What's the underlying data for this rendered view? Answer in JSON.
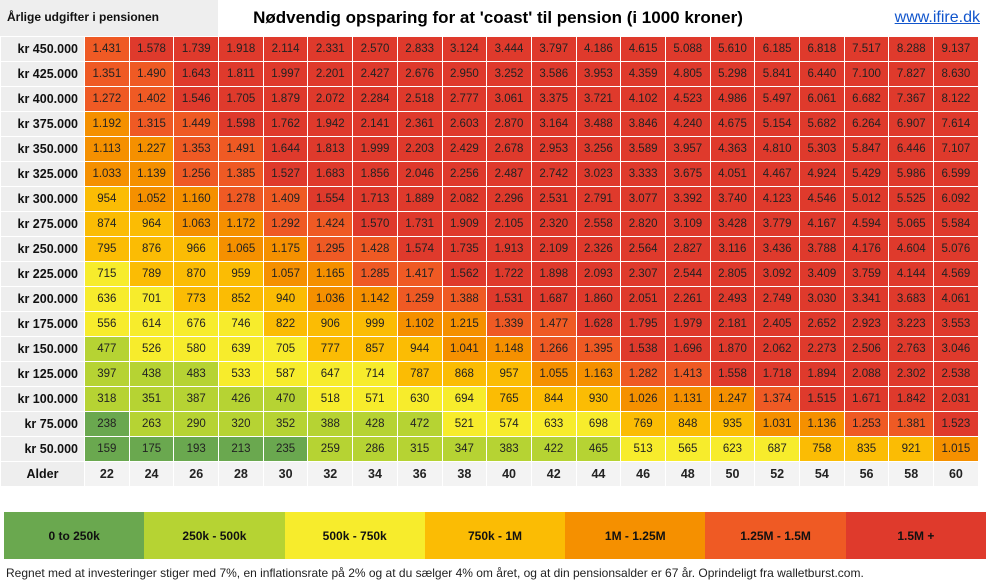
{
  "header": {
    "row_label": "Årlige udgifter i pensionen",
    "title": "Nødvendig opsparing for at 'coast' til pension (i 1000 kroner)",
    "link": "www.ifire.dk"
  },
  "age_label": "Alder",
  "ages": [
    "22",
    "24",
    "26",
    "28",
    "30",
    "32",
    "34",
    "36",
    "38",
    "40",
    "42",
    "44",
    "46",
    "48",
    "50",
    "52",
    "54",
    "56",
    "58",
    "60"
  ],
  "rows": [
    {
      "label": "kr 450.000",
      "values": [
        "1.431",
        "1.578",
        "1.739",
        "1.918",
        "2.114",
        "2.331",
        "2.570",
        "2.833",
        "3.124",
        "3.444",
        "3.797",
        "4.186",
        "4.615",
        "5.088",
        "5.610",
        "6.185",
        "6.818",
        "7.517",
        "8.288",
        "9.137"
      ]
    },
    {
      "label": "kr 425.000",
      "values": [
        "1.351",
        "1.490",
        "1.643",
        "1.811",
        "1.997",
        "2.201",
        "2.427",
        "2.676",
        "2.950",
        "3.252",
        "3.586",
        "3.953",
        "4.359",
        "4.805",
        "5.298",
        "5.841",
        "6.440",
        "7.100",
        "7.827",
        "8.630"
      ]
    },
    {
      "label": "kr 400.000",
      "values": [
        "1.272",
        "1.402",
        "1.546",
        "1.705",
        "1.879",
        "2.072",
        "2.284",
        "2.518",
        "2.777",
        "3.061",
        "3.375",
        "3.721",
        "4.102",
        "4.523",
        "4.986",
        "5.497",
        "6.061",
        "6.682",
        "7.367",
        "8.122"
      ]
    },
    {
      "label": "kr 375.000",
      "values": [
        "1.192",
        "1.315",
        "1.449",
        "1.598",
        "1.762",
        "1.942",
        "2.141",
        "2.361",
        "2.603",
        "2.870",
        "3.164",
        "3.488",
        "3.846",
        "4.240",
        "4.675",
        "5.154",
        "5.682",
        "6.264",
        "6.907",
        "7.614"
      ]
    },
    {
      "label": "kr 350.000",
      "values": [
        "1.113",
        "1.227",
        "1.353",
        "1.491",
        "1.644",
        "1.813",
        "1.999",
        "2.203",
        "2.429",
        "2.678",
        "2.953",
        "3.256",
        "3.589",
        "3.957",
        "4.363",
        "4.810",
        "5.303",
        "5.847",
        "6.446",
        "7.107"
      ]
    },
    {
      "label": "kr 325.000",
      "values": [
        "1.033",
        "1.139",
        "1.256",
        "1.385",
        "1.527",
        "1.683",
        "1.856",
        "2.046",
        "2.256",
        "2.487",
        "2.742",
        "3.023",
        "3.333",
        "3.675",
        "4.051",
        "4.467",
        "4.924",
        "5.429",
        "5.986",
        "6.599"
      ]
    },
    {
      "label": "kr 300.000",
      "values": [
        "954",
        "1.052",
        "1.160",
        "1.278",
        "1.409",
        "1.554",
        "1.713",
        "1.889",
        "2.082",
        "2.296",
        "2.531",
        "2.791",
        "3.077",
        "3.392",
        "3.740",
        "4.123",
        "4.546",
        "5.012",
        "5.525",
        "6.092"
      ]
    },
    {
      "label": "kr 275.000",
      "values": [
        "874",
        "964",
        "1.063",
        "1.172",
        "1.292",
        "1.424",
        "1.570",
        "1.731",
        "1.909",
        "2.105",
        "2.320",
        "2.558",
        "2.820",
        "3.109",
        "3.428",
        "3.779",
        "4.167",
        "4.594",
        "5.065",
        "5.584"
      ]
    },
    {
      "label": "kr 250.000",
      "values": [
        "795",
        "876",
        "966",
        "1.065",
        "1.175",
        "1.295",
        "1.428",
        "1.574",
        "1.735",
        "1.913",
        "2.109",
        "2.326",
        "2.564",
        "2.827",
        "3.116",
        "3.436",
        "3.788",
        "4.176",
        "4.604",
        "5.076"
      ]
    },
    {
      "label": "kr 225.000",
      "values": [
        "715",
        "789",
        "870",
        "959",
        "1.057",
        "1.165",
        "1.285",
        "1.417",
        "1.562",
        "1.722",
        "1.898",
        "2.093",
        "2.307",
        "2.544",
        "2.805",
        "3.092",
        "3.409",
        "3.759",
        "4.144",
        "4.569"
      ]
    },
    {
      "label": "kr 200.000",
      "values": [
        "636",
        "701",
        "773",
        "852",
        "940",
        "1.036",
        "1.142",
        "1.259",
        "1.388",
        "1.531",
        "1.687",
        "1.860",
        "2.051",
        "2.261",
        "2.493",
        "2.749",
        "3.030",
        "3.341",
        "3.683",
        "4.061"
      ]
    },
    {
      "label": "kr 175.000",
      "values": [
        "556",
        "614",
        "676",
        "746",
        "822",
        "906",
        "999",
        "1.102",
        "1.215",
        "1.339",
        "1.477",
        "1.628",
        "1.795",
        "1.979",
        "2.181",
        "2.405",
        "2.652",
        "2.923",
        "3.223",
        "3.553"
      ]
    },
    {
      "label": "kr 150.000",
      "values": [
        "477",
        "526",
        "580",
        "639",
        "705",
        "777",
        "857",
        "944",
        "1.041",
        "1.148",
        "1.266",
        "1.395",
        "1.538",
        "1.696",
        "1.870",
        "2.062",
        "2.273",
        "2.506",
        "2.763",
        "3.046"
      ]
    },
    {
      "label": "kr 125.000",
      "values": [
        "397",
        "438",
        "483",
        "533",
        "587",
        "647",
        "714",
        "787",
        "868",
        "957",
        "1.055",
        "1.163",
        "1.282",
        "1.413",
        "1.558",
        "1.718",
        "1.894",
        "2.088",
        "2.302",
        "2.538"
      ]
    },
    {
      "label": "kr 100.000",
      "values": [
        "318",
        "351",
        "387",
        "426",
        "470",
        "518",
        "571",
        "630",
        "694",
        "765",
        "844",
        "930",
        "1.026",
        "1.131",
        "1.247",
        "1.374",
        "1.515",
        "1.671",
        "1.842",
        "2.031"
      ]
    },
    {
      "label": "kr 75.000",
      "values": [
        "238",
        "263",
        "290",
        "320",
        "352",
        "388",
        "428",
        "472",
        "521",
        "574",
        "633",
        "698",
        "769",
        "848",
        "935",
        "1.031",
        "1.136",
        "1.253",
        "1.381",
        "1.523"
      ]
    },
    {
      "label": "kr 50.000",
      "values": [
        "159",
        "175",
        "193",
        "213",
        "235",
        "259",
        "286",
        "315",
        "347",
        "383",
        "422",
        "465",
        "513",
        "565",
        "623",
        "687",
        "758",
        "835",
        "921",
        "1.015"
      ]
    }
  ],
  "legend": [
    {
      "label": "0 to 250k",
      "color": "#6aa84f"
    },
    {
      "label": "250k - 500k",
      "color": "#b6d333"
    },
    {
      "label": "500k - 750k",
      "color": "#f7ec2c"
    },
    {
      "label": "750k - 1M",
      "color": "#fbbc04"
    },
    {
      "label": "1M - 1.25M",
      "color": "#f59000"
    },
    {
      "label": "1.25M - 1.5M",
      "color": "#ef5a24"
    },
    {
      "label": "1.5M +",
      "color": "#df3a2c"
    }
  ],
  "footer": "Regnet med at investeringer stiger med 7%, en inflationsrate på 2% og at du sælger 4% om året, og at din pensionsalder er 67 år. Oprindeligt fra walletburst.com."
}
